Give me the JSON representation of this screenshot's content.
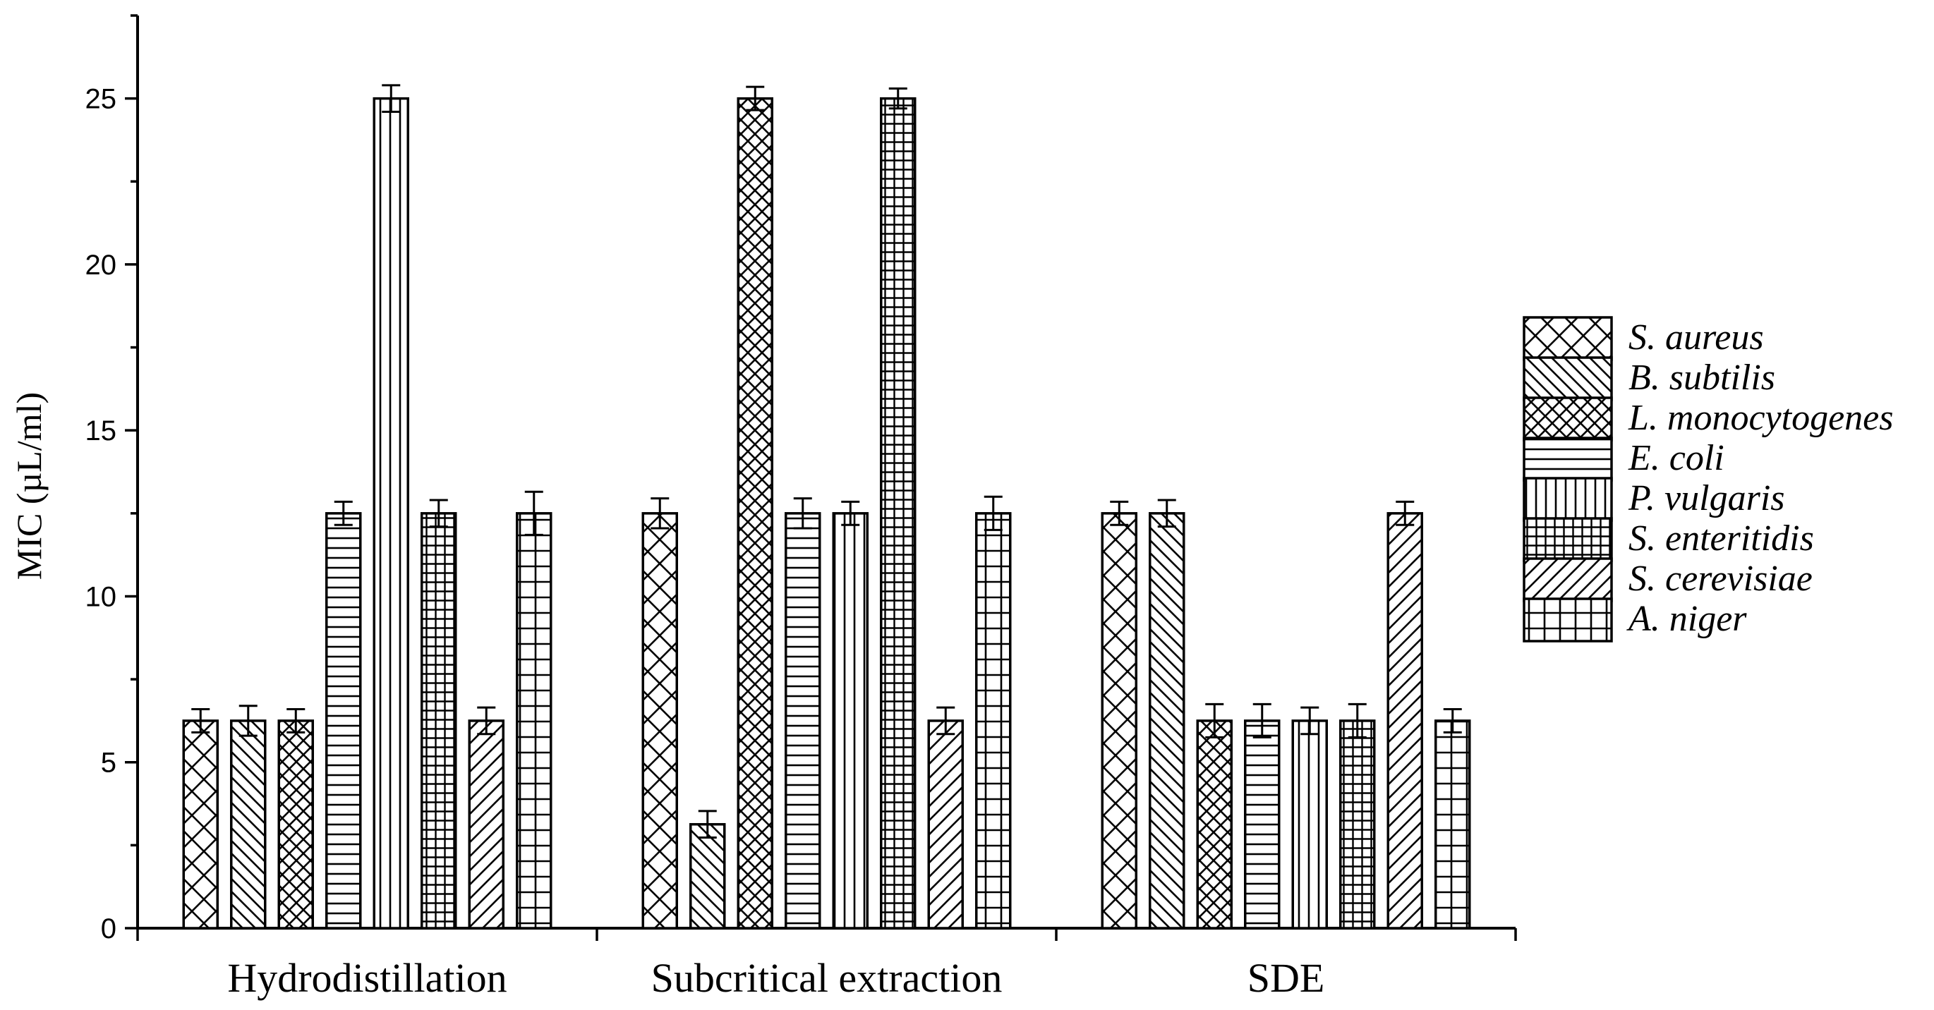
{
  "chart_data": {
    "type": "bar",
    "title": "",
    "xlabel": "",
    "ylabel": "MIC (µL/ml)",
    "ylim": [
      0,
      27.5
    ],
    "yticks": [
      "0",
      "5",
      "10",
      "15",
      "20",
      "25"
    ],
    "categories": [
      "Hydrodistillation",
      "Subcritical extraction",
      "SDE"
    ],
    "legend_position": "right",
    "grid": false,
    "series": [
      {
        "name": "S. aureus",
        "pattern": "crosshatch-diagonal-wide",
        "values": [
          6.25,
          12.5,
          12.5
        ],
        "errors": [
          0.35,
          0.45,
          0.35
        ]
      },
      {
        "name": "B. subtilis",
        "pattern": "diagonal-back",
        "values": [
          6.25,
          3.13,
          12.5
        ],
        "errors": [
          0.45,
          0.4,
          0.4
        ]
      },
      {
        "name": "L. monocytogenes",
        "pattern": "crosshatch-diagonal-dense",
        "values": [
          6.25,
          25,
          6.25
        ],
        "errors": [
          0.35,
          0.35,
          0.5
        ]
      },
      {
        "name": "E. coli",
        "pattern": "horizontal",
        "values": [
          12.5,
          12.5,
          6.25
        ],
        "errors": [
          0.35,
          0.45,
          0.5
        ]
      },
      {
        "name": "P. vulgaris",
        "pattern": "vertical",
        "values": [
          25,
          12.5,
          6.25
        ],
        "errors": [
          0.4,
          0.35,
          0.4
        ]
      },
      {
        "name": "S. enteritidis",
        "pattern": "grid-dense",
        "values": [
          12.5,
          25,
          6.25
        ],
        "errors": [
          0.4,
          0.3,
          0.5
        ]
      },
      {
        "name": "S. cerevisiae",
        "pattern": "diagonal-forward",
        "values": [
          6.25,
          6.25,
          12.5
        ],
        "errors": [
          0.4,
          0.4,
          0.35
        ]
      },
      {
        "name": "A. niger",
        "pattern": "grid-wide",
        "values": [
          12.5,
          12.5,
          6.25
        ],
        "errors": [
          0.65,
          0.5,
          0.35
        ]
      }
    ]
  }
}
